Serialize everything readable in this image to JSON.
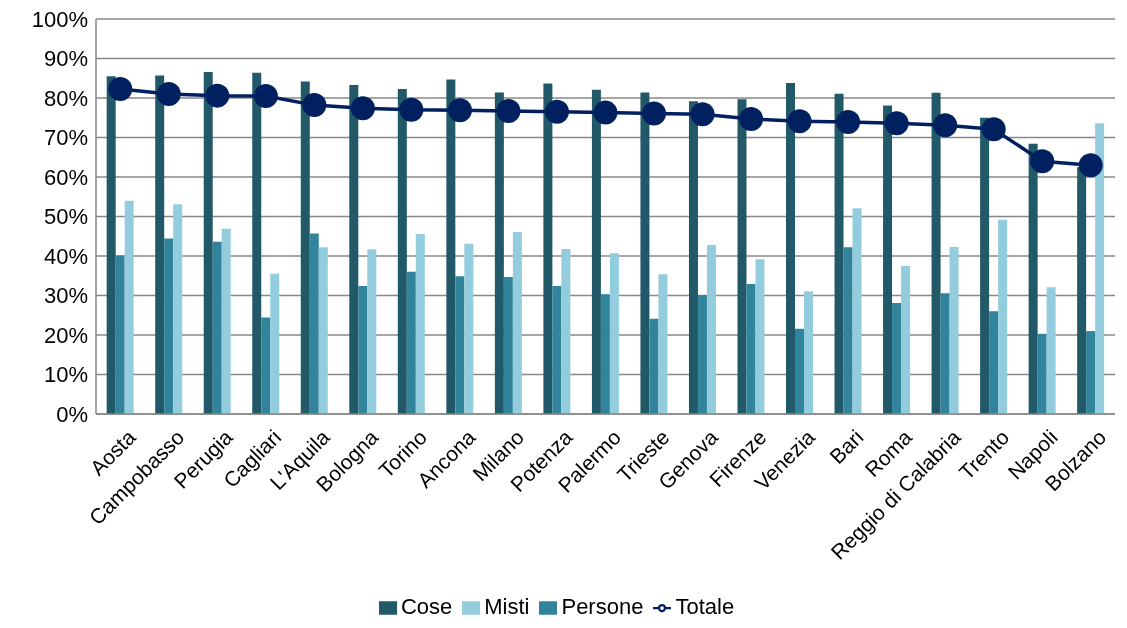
{
  "chart_data": {
    "type": "bar",
    "categories": [
      "Aosta",
      "Campobasso",
      "Perugia",
      "Cagliari",
      "L'Aquila",
      "Bologna",
      "Torino",
      "Ancona",
      "Milano",
      "Potenza",
      "Palermo",
      "Trieste",
      "Genova",
      "Firenze",
      "Venezia",
      "Bari",
      "Roma",
      "Reggio di Calabria",
      "Trento",
      "Napoli",
      "Bolzano"
    ],
    "series": [
      {
        "name": "Cose",
        "color": "#215968",
        "values": [
          85.5,
          85.7,
          86.6,
          86.4,
          84.2,
          83.3,
          82.3,
          84.7,
          81.4,
          83.7,
          82.1,
          81.4,
          79.2,
          79.7,
          83.8,
          81.1,
          78.1,
          81.3,
          75.0,
          68.4,
          62.5
        ]
      },
      {
        "name": "Persone",
        "color": "#31849b",
        "values": [
          40.1,
          44.4,
          43.6,
          24.4,
          45.7,
          32.4,
          36.0,
          34.9,
          34.7,
          32.4,
          30.3,
          24.1,
          30.1,
          32.9,
          21.6,
          42.2,
          28.1,
          30.6,
          26.0,
          20.3,
          21.0
        ]
      },
      {
        "name": "Misti",
        "color": "#93cddd",
        "values": [
          54.0,
          53.1,
          46.9,
          35.5,
          42.2,
          41.7,
          45.6,
          43.1,
          46.1,
          41.8,
          40.7,
          35.4,
          42.8,
          39.2,
          31.1,
          52.1,
          37.5,
          42.3,
          49.2,
          32.1,
          73.6
        ]
      },
      {
        "name": "Totale",
        "type": "line",
        "color": "#002060",
        "marker": "circle",
        "values": [
          82.3,
          81.0,
          80.6,
          80.5,
          78.2,
          77.4,
          77.0,
          76.9,
          76.7,
          76.5,
          76.3,
          76.1,
          75.9,
          74.7,
          74.1,
          73.9,
          73.6,
          73.1,
          72.1,
          64.0,
          63.0
        ]
      }
    ],
    "ylim": [
      0,
      100
    ],
    "yticks": [
      {
        "value": 0,
        "label": "0%"
      },
      {
        "value": 10,
        "label": "10%"
      },
      {
        "value": 20,
        "label": "20%"
      },
      {
        "value": 30,
        "label": "30%"
      },
      {
        "value": 40,
        "label": "40%"
      },
      {
        "value": 50,
        "label": "50%"
      },
      {
        "value": 60,
        "label": "60%"
      },
      {
        "value": 70,
        "label": "70%"
      },
      {
        "value": 80,
        "label": "80%"
      },
      {
        "value": 90,
        "label": "90%"
      },
      {
        "value": 100,
        "label": "100%"
      }
    ],
    "grid": "y",
    "legend": "bottom"
  }
}
